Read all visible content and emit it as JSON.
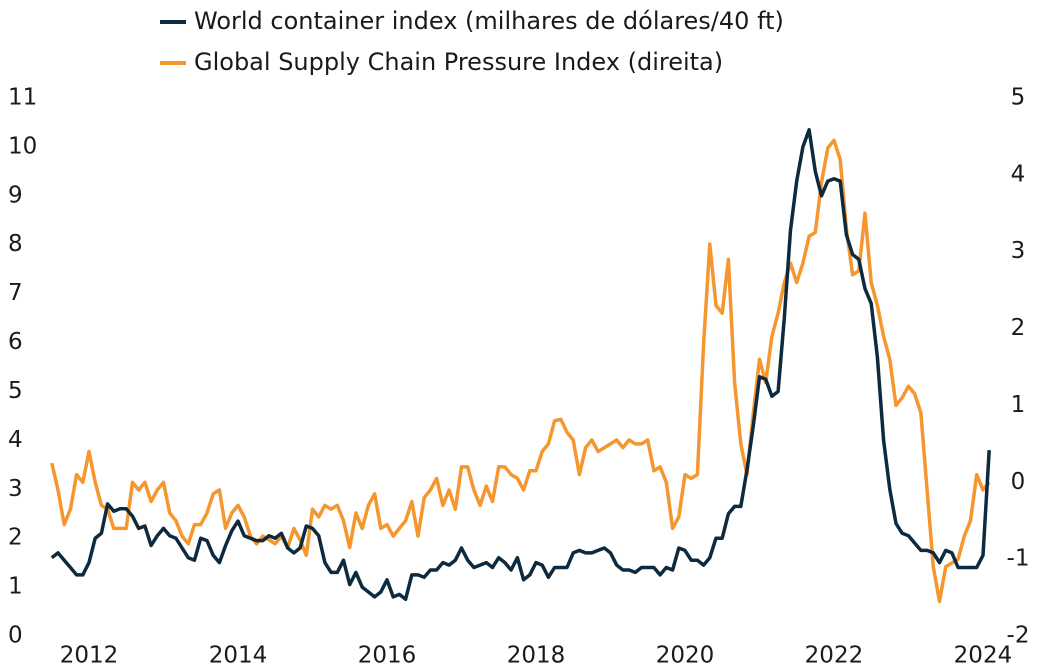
{
  "chart_data": {
    "type": "line",
    "categories": [
      null,
      null,
      null,
      null,
      null,
      null,
      "2012",
      null,
      null,
      null,
      null,
      null,
      null,
      null,
      null,
      null,
      null,
      null,
      null,
      null,
      null,
      null,
      null,
      null,
      null,
      null,
      null,
      null,
      null,
      null,
      "2014",
      null,
      null,
      null,
      null,
      null,
      null,
      null,
      null,
      null,
      null,
      null,
      null,
      null,
      null,
      null,
      null,
      null,
      null,
      null,
      null,
      null,
      null,
      null,
      "2016",
      null,
      null,
      null,
      null,
      null,
      null,
      null,
      null,
      null,
      null,
      null,
      null,
      null,
      null,
      null,
      null,
      null,
      null,
      null,
      null,
      null,
      null,
      null,
      "2018",
      null,
      null,
      null,
      null,
      null,
      null,
      null,
      null,
      null,
      null,
      null,
      null,
      null,
      null,
      null,
      null,
      null,
      null,
      null,
      null,
      null,
      null,
      null,
      "2020",
      null,
      null,
      null,
      null,
      null,
      null,
      null,
      null,
      null,
      null,
      null,
      null,
      null,
      null,
      null,
      null,
      null,
      null,
      null,
      null,
      null,
      null,
      null,
      "2022",
      null,
      null,
      null,
      null,
      null,
      null,
      null,
      null,
      null,
      null,
      null,
      null,
      null,
      null,
      null,
      null,
      null,
      null,
      null,
      null,
      null,
      null,
      null,
      "2024",
      null
    ],
    "series": [
      {
        "name": "World container index (milhares de dólares/40 ft)",
        "color": "#0d2a3f",
        "values": [
          1.6,
          1.7,
          1.55,
          1.4,
          1.25,
          1.25,
          1.5,
          2.0,
          2.1,
          2.7,
          2.55,
          2.6,
          2.6,
          2.45,
          2.2,
          2.25,
          1.85,
          2.05,
          2.2,
          2.05,
          2.0,
          1.8,
          1.6,
          1.55,
          2.0,
          1.95,
          1.65,
          1.5,
          1.85,
          2.15,
          2.35,
          2.05,
          2.0,
          1.95,
          1.95,
          2.05,
          2.0,
          2.1,
          1.8,
          1.7,
          1.8,
          2.25,
          2.2,
          2.05,
          1.5,
          1.3,
          1.3,
          1.55,
          1.05,
          1.3,
          1.0,
          0.9,
          0.8,
          0.9,
          1.15,
          0.8,
          0.85,
          0.75,
          1.25,
          1.25,
          1.2,
          1.35,
          1.35,
          1.5,
          1.45,
          1.55,
          1.8,
          1.55,
          1.4,
          1.45,
          1.5,
          1.4,
          1.6,
          1.5,
          1.35,
          1.6,
          1.15,
          1.25,
          1.5,
          1.45,
          1.2,
          1.4,
          1.4,
          1.4,
          1.7,
          1.75,
          1.7,
          1.7,
          1.75,
          1.8,
          1.7,
          1.45,
          1.35,
          1.35,
          1.3,
          1.4,
          1.4,
          1.4,
          1.25,
          1.4,
          1.35,
          1.8,
          1.75,
          1.55,
          1.55,
          1.45,
          1.6,
          2.0,
          2.0,
          2.5,
          2.65,
          2.65,
          3.4,
          4.3,
          5.3,
          5.25,
          4.9,
          5.0,
          6.5,
          8.3,
          9.3,
          10.0,
          10.35,
          9.5,
          9.0,
          9.3,
          9.35,
          9.3,
          8.2,
          7.8,
          7.7,
          7.1,
          6.8,
          5.7,
          4.0,
          3.0,
          2.3,
          2.1,
          2.05,
          1.9,
          1.75,
          1.75,
          1.7,
          1.5,
          1.75,
          1.7,
          1.4,
          1.4,
          1.4,
          1.4,
          1.65,
          3.8
        ]
      },
      {
        "name": "Global Supply Chain Pressure Index (direita)",
        "color": "#f5962f",
        "axis": "y2",
        "values": [
          0.25,
          -0.1,
          -0.55,
          -0.35,
          0.1,
          0.0,
          0.4,
          0.0,
          -0.3,
          -0.35,
          -0.6,
          -0.6,
          -0.6,
          0.0,
          -0.1,
          0.0,
          -0.25,
          -0.1,
          0.0,
          -0.4,
          -0.5,
          -0.7,
          -0.8,
          -0.55,
          -0.55,
          -0.4,
          -0.15,
          -0.1,
          -0.6,
          -0.4,
          -0.3,
          -0.45,
          -0.7,
          -0.8,
          -0.7,
          -0.75,
          -0.8,
          -0.7,
          -0.85,
          -0.6,
          -0.75,
          -0.95,
          -0.35,
          -0.45,
          -0.3,
          -0.35,
          -0.3,
          -0.5,
          -0.85,
          -0.4,
          -0.6,
          -0.3,
          -0.15,
          -0.6,
          -0.55,
          -0.7,
          -0.6,
          -0.5,
          -0.25,
          -0.7,
          -0.2,
          -0.1,
          0.05,
          -0.3,
          -0.1,
          -0.35,
          0.2,
          0.2,
          -0.1,
          -0.3,
          -0.05,
          -0.25,
          0.2,
          0.2,
          0.1,
          0.05,
          -0.1,
          0.15,
          0.15,
          0.4,
          0.5,
          0.8,
          0.82,
          0.65,
          0.55,
          0.1,
          0.45,
          0.55,
          0.4,
          0.45,
          0.5,
          0.55,
          0.45,
          0.55,
          0.5,
          0.5,
          0.55,
          0.15,
          0.2,
          0.0,
          -0.6,
          -0.45,
          0.1,
          0.05,
          0.1,
          1.8,
          3.1,
          2.3,
          2.2,
          2.9,
          1.3,
          0.5,
          0.1,
          0.9,
          1.6,
          1.3,
          1.9,
          2.2,
          2.6,
          2.85,
          2.6,
          2.85,
          3.2,
          3.25,
          3.9,
          4.35,
          4.45,
          4.2,
          3.3,
          2.7,
          2.75,
          3.5,
          2.6,
          2.3,
          1.9,
          1.6,
          1.0,
          1.1,
          1.25,
          1.15,
          0.9,
          -0.1,
          -1.1,
          -1.55,
          -1.1,
          -1.05,
          -1.0,
          -0.7,
          -0.5,
          0.1,
          -0.1,
          0.0
        ]
      }
    ],
    "ylim": [
      0,
      11
    ],
    "yticks": [
      0,
      1,
      2,
      3,
      4,
      5,
      6,
      7,
      8,
      9,
      10,
      11
    ],
    "y2lim": [
      -2,
      5
    ],
    "y2ticks": [
      -2,
      -1,
      0,
      1,
      2,
      3,
      4,
      5
    ],
    "legend": "top"
  }
}
